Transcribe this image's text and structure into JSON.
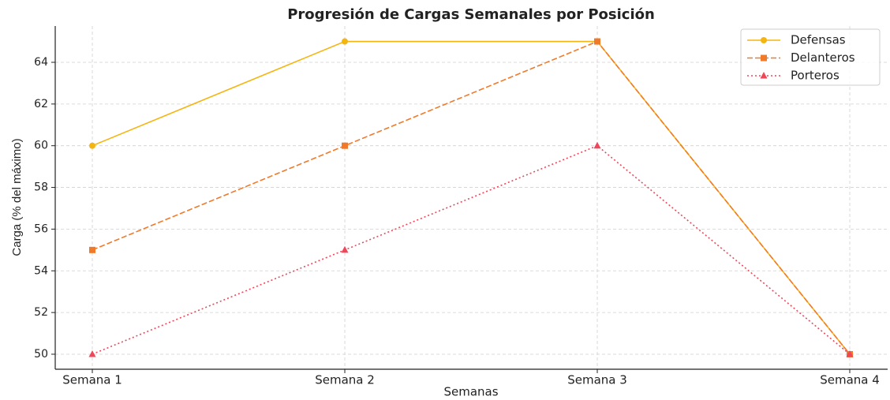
{
  "chart_data": {
    "type": "line",
    "title": "Progresión de Cargas Semanales por Posición",
    "x_label": "Semanas",
    "y_label": "Carga (% del máximo)",
    "categories": [
      "Semana 1",
      "Semana 2",
      "Semana 3",
      "Semana 4"
    ],
    "series": [
      {
        "name": "Defensas",
        "color": "#f5b511",
        "linestyle": "solid",
        "marker": "circle",
        "values": [
          60,
          65,
          65,
          50
        ]
      },
      {
        "name": "Delanteros",
        "color": "#f07a2a",
        "linestyle": "dashed",
        "marker": "square",
        "values": [
          55,
          60,
          65,
          50
        ]
      },
      {
        "name": "Porteros",
        "color": "#f0465a",
        "linestyle": "dotted",
        "marker": "triangle",
        "values": [
          50,
          55,
          60,
          50
        ]
      }
    ],
    "ylim": [
      49.28,
      65.74
    ],
    "yticks": [
      50,
      52,
      54,
      56,
      58,
      60,
      62,
      64
    ],
    "grid": true,
    "legend": "upper right"
  }
}
